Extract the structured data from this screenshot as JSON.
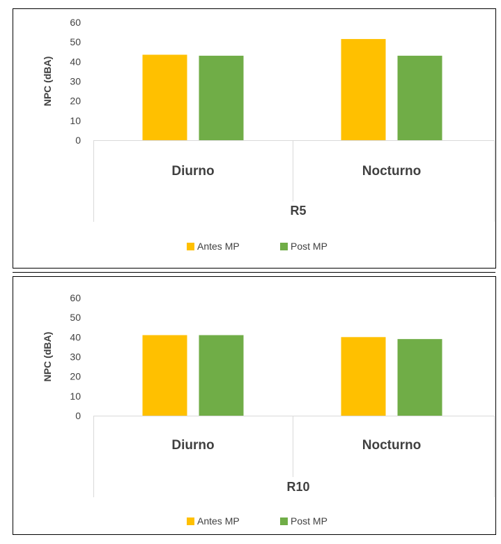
{
  "colors": {
    "series_antes": "#FFC000",
    "series_post": "#70AD47",
    "axis_text": "#404040",
    "axis_line": "#D9D9D9",
    "frame": "#000000"
  },
  "chart_data": [
    {
      "type": "bar",
      "title": "",
      "xlabel": "R5",
      "ylabel": "NPC (dBA)",
      "categories": [
        "Diurno",
        "Nocturno"
      ],
      "series": [
        {
          "name": "Antes MP",
          "values": [
            43.5,
            51.5
          ]
        },
        {
          "name": "Post MP",
          "values": [
            43,
            43
          ]
        }
      ],
      "yticks": [
        0,
        10,
        20,
        30,
        40,
        50,
        60
      ],
      "ylim": [
        0,
        60
      ],
      "grid": false,
      "legend_position": "bottom"
    },
    {
      "type": "bar",
      "title": "",
      "xlabel": "R10",
      "ylabel": "NPC (dBA)",
      "categories": [
        "Diurno",
        "Nocturno"
      ],
      "series": [
        {
          "name": "Antes MP",
          "values": [
            41,
            40
          ]
        },
        {
          "name": "Post MP",
          "values": [
            41,
            39
          ]
        }
      ],
      "yticks": [
        0,
        10,
        20,
        30,
        40,
        50,
        60
      ],
      "ylim": [
        0,
        60
      ],
      "grid": false,
      "legend_position": "bottom"
    }
  ]
}
